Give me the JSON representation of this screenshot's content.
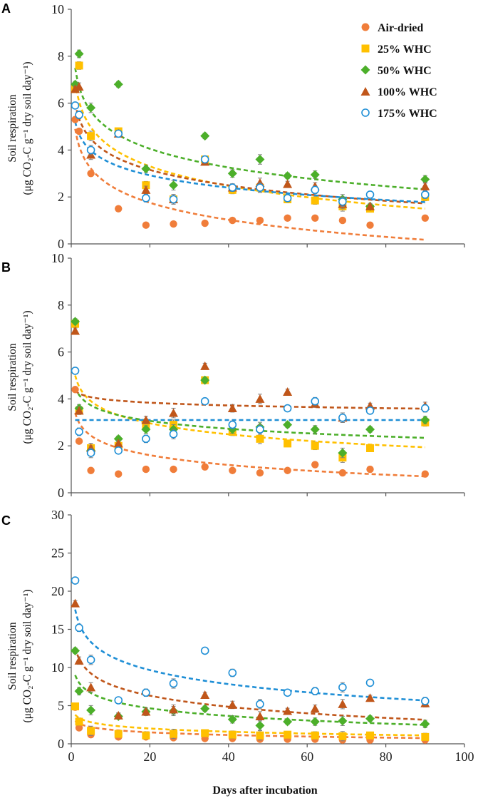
{
  "colors": {
    "air": "#f07d3a",
    "w25": "#ffc000",
    "w50": "#4caf2a",
    "w100": "#c0561a",
    "w175": "#1f8fd6",
    "error": "#7f7f7f",
    "axis": "#555555"
  },
  "chart_data": [
    {
      "panel": "A",
      "type": "scatter",
      "ylabel": [
        "Soil respiration",
        "(μg CO₂-C g⁻¹ dry soil day⁻¹)"
      ],
      "xlabel": "",
      "xlim": [
        0,
        100
      ],
      "ylim": [
        0,
        10
      ],
      "yticks": [
        "0",
        "2",
        "4",
        "6",
        "8",
        "10"
      ],
      "xticks": [],
      "legend": [
        "Air-dried",
        "25% WHC",
        "50% WHC",
        "100% WHC",
        "175% WHC"
      ],
      "x": [
        1,
        2,
        5,
        12,
        19,
        26,
        34,
        41,
        48,
        55,
        62,
        69,
        76,
        90
      ],
      "series": [
        {
          "name": "Air-dried",
          "values": [
            5.3,
            4.8,
            3.0,
            1.5,
            0.8,
            0.85,
            0.88,
            1.0,
            1.0,
            1.1,
            1.1,
            1.0,
            0.8,
            1.1
          ],
          "fit": [
            4.9,
            -1.05
          ]
        },
        {
          "name": "25% WHC",
          "values": [
            6.6,
            7.6,
            4.6,
            4.8,
            2.5,
            1.9,
            3.6,
            2.3,
            2.4,
            1.9,
            1.85,
            1.6,
            1.5,
            2.0
          ],
          "fit": [
            6.9,
            -1.2
          ]
        },
        {
          "name": "50% WHC",
          "values": [
            6.8,
            8.1,
            5.8,
            6.8,
            3.2,
            2.5,
            4.6,
            3.0,
            3.6,
            2.9,
            2.95,
            1.9,
            1.6,
            2.75
          ],
          "fit": [
            7.5,
            -1.15
          ]
        },
        {
          "name": "100% WHC",
          "values": [
            6.6,
            6.7,
            3.8,
            4.7,
            2.3,
            1.9,
            3.5,
            2.4,
            2.6,
            2.55,
            2.45,
            1.7,
            1.6,
            2.45
          ],
          "fit": [
            6.0,
            -0.95
          ]
        },
        {
          "name": "175% WHC",
          "values": [
            5.9,
            5.5,
            4.0,
            4.7,
            1.95,
            1.9,
            3.6,
            2.4,
            2.4,
            1.95,
            2.3,
            1.8,
            2.1,
            2.1
          ],
          "fit": [
            5.2,
            -0.76
          ]
        }
      ]
    },
    {
      "panel": "B",
      "type": "scatter",
      "ylabel": [
        "Soil respiration",
        "(μg CO₂-C g⁻¹ dry soil day⁻¹)"
      ],
      "xlabel": "",
      "xlim": [
        0,
        100
      ],
      "ylim": [
        0,
        10
      ],
      "yticks": [
        "0",
        "2",
        "4",
        "6",
        "8",
        "10"
      ],
      "xticks": [],
      "x": [
        1,
        2,
        5,
        12,
        19,
        26,
        34,
        41,
        48,
        55,
        62,
        69,
        76,
        90
      ],
      "series": [
        {
          "name": "Air-dried",
          "values": [
            4.4,
            2.2,
            0.95,
            0.8,
            1.0,
            1.0,
            1.1,
            0.95,
            0.85,
            0.95,
            1.2,
            0.85,
            1.0,
            0.8
          ],
          "fit": [
            3.4,
            -0.6
          ]
        },
        {
          "name": "25% WHC",
          "values": [
            7.2,
            3.5,
            1.9,
            2.0,
            2.9,
            2.9,
            4.8,
            2.6,
            2.3,
            2.1,
            2.0,
            1.5,
            1.9,
            3.0
          ],
          "fit": [
            5.0,
            -0.68
          ]
        },
        {
          "name": "50% WHC",
          "values": [
            7.3,
            3.6,
            1.8,
            2.3,
            2.7,
            2.7,
            4.8,
            2.7,
            2.8,
            2.9,
            2.7,
            1.7,
            2.7,
            3.1
          ],
          "fit": [
            4.5,
            -0.48
          ]
        },
        {
          "name": "100% WHC",
          "values": [
            6.9,
            3.5,
            1.9,
            2.1,
            3.1,
            3.4,
            5.4,
            3.6,
            4.0,
            4.3,
            3.8,
            3.2,
            3.7,
            3.7
          ],
          "fit": [
            4.35,
            -0.17
          ]
        },
        {
          "name": "175% WHC",
          "values": [
            5.2,
            2.6,
            1.7,
            1.8,
            2.3,
            2.5,
            3.9,
            2.9,
            2.7,
            3.6,
            3.9,
            3.2,
            3.5,
            3.6
          ],
          "fit": [
            3.1,
            0
          ]
        }
      ]
    },
    {
      "panel": "C",
      "type": "scatter",
      "ylabel": [
        "Soil respiration",
        "(μg CO₂-C g⁻¹ dry soil day⁻¹)"
      ],
      "xlabel": "Days after incubation",
      "xlim": [
        0,
        100
      ],
      "ylim": [
        0,
        30
      ],
      "yticks": [
        "0",
        "5",
        "10",
        "15",
        "20",
        "25",
        "30"
      ],
      "xticks": [
        "0",
        "20",
        "40",
        "60",
        "80",
        "100"
      ],
      "x": [
        1,
        2,
        5,
        12,
        19,
        26,
        34,
        41,
        48,
        55,
        62,
        69,
        76,
        90
      ],
      "series": [
        {
          "name": "Air-dried",
          "values": [
            4.8,
            2.1,
            1.2,
            0.9,
            0.9,
            0.8,
            0.7,
            0.7,
            0.6,
            0.6,
            0.6,
            0.5,
            0.5,
            0.5
          ],
          "fit": [
            3.0,
            -0.5
          ]
        },
        {
          "name": "25% WHC",
          "values": [
            4.9,
            2.9,
            1.7,
            1.3,
            1.1,
            1.3,
            1.4,
            1.2,
            1.1,
            1.2,
            1.1,
            1.0,
            1.1,
            0.9
          ],
          "fit": [
            3.8,
            -0.6
          ]
        },
        {
          "name": "50% WHC",
          "values": [
            12.2,
            6.9,
            4.4,
            3.6,
            4.2,
            4.3,
            4.6,
            3.2,
            2.4,
            2.9,
            2.9,
            3.0,
            3.3,
            2.6
          ],
          "fit": [
            9.0,
            -1.45
          ]
        },
        {
          "name": "100% WHC",
          "values": [
            18.4,
            10.9,
            7.4,
            3.7,
            4.2,
            4.5,
            6.4,
            5.1,
            3.6,
            4.3,
            4.6,
            5.2,
            6.0,
            5.3
          ],
          "fit": [
            12.6,
            -2.1
          ]
        },
        {
          "name": "175% WHC",
          "values": [
            21.4,
            15.2,
            11.0,
            5.7,
            6.7,
            7.9,
            12.2,
            9.3,
            5.2,
            6.7,
            6.9,
            7.4,
            8.0,
            5.6
          ],
          "fit": [
            17.6,
            -2.65
          ]
        }
      ]
    }
  ]
}
